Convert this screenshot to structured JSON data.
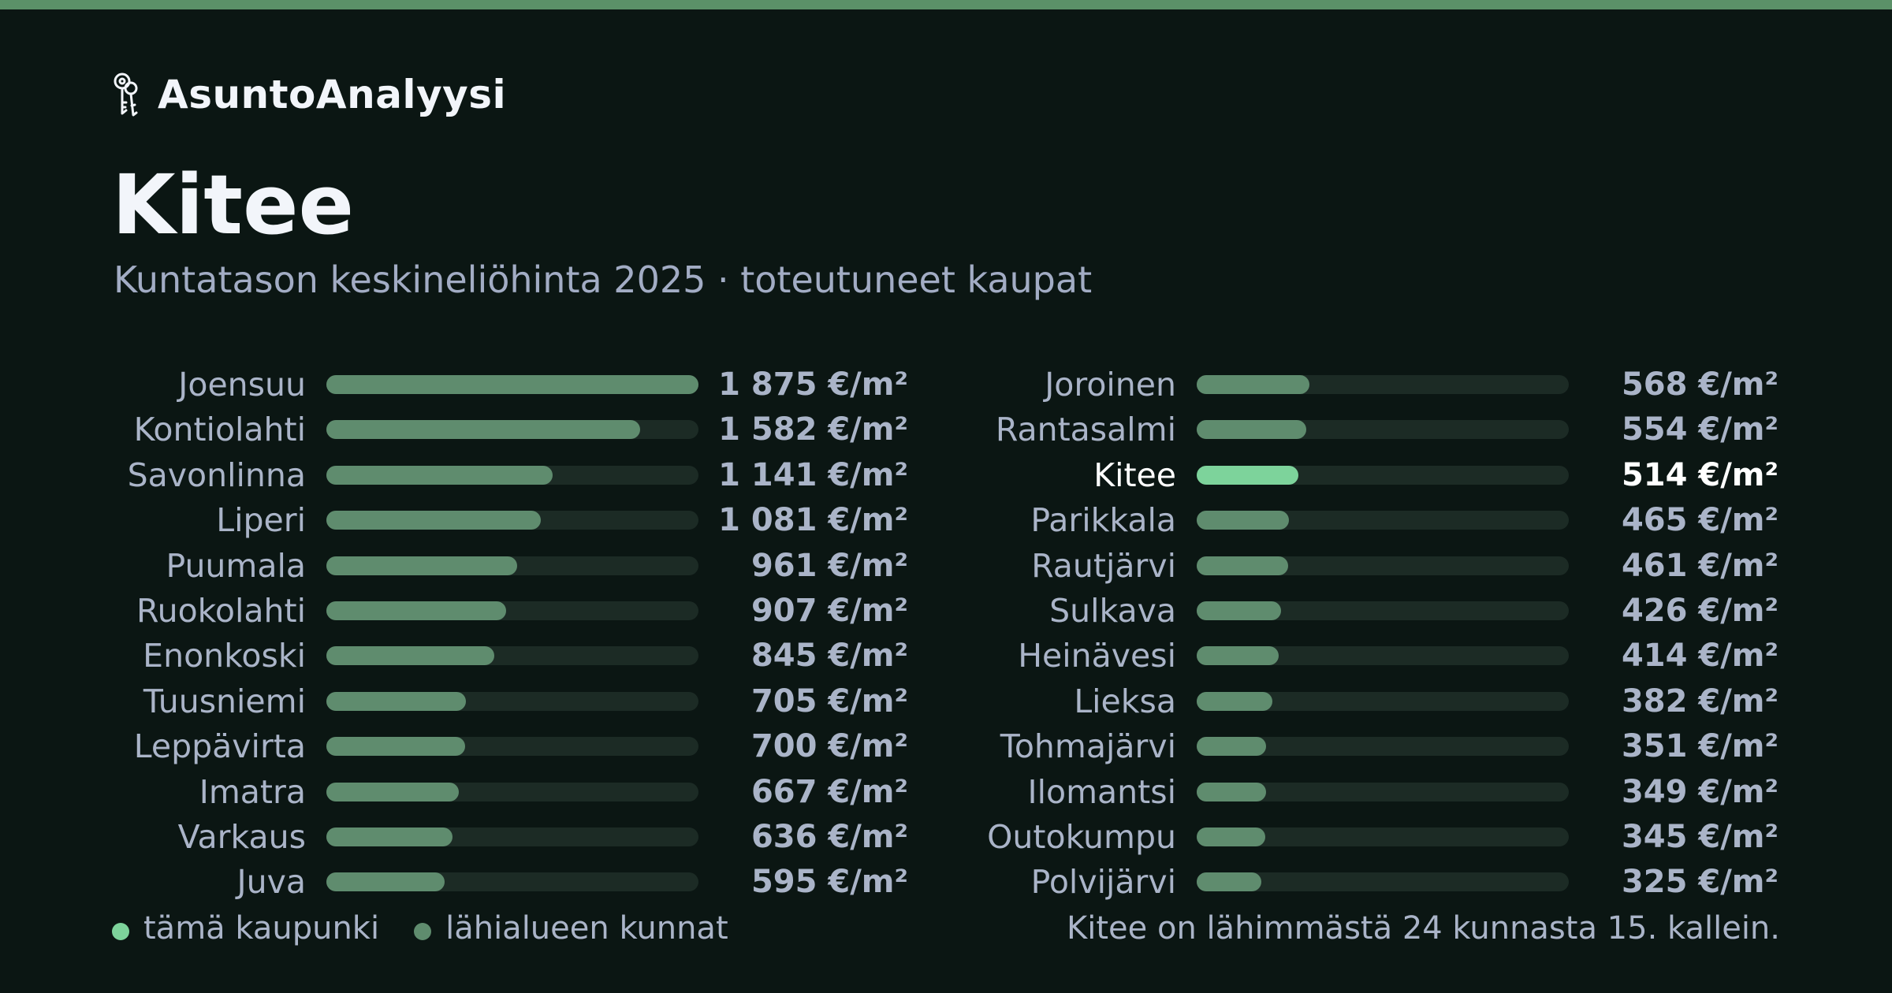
{
  "brand": {
    "name": "AsuntoAnalyysi",
    "icon": "keys-icon"
  },
  "page": {
    "title": "Kitee",
    "subtitle": "Kuntatason keskineliöhinta 2025 · toteutuneet kaupat"
  },
  "colors": {
    "accent_stripe": "#5b9168",
    "bar_default": "#5f8c6e",
    "bar_highlight": "#7dd39b",
    "bar_track": "#1c2b25",
    "background": "#0b1613"
  },
  "chart_data": {
    "type": "bar",
    "orientation": "horizontal",
    "unit": "€/m²",
    "highlight": "Kitee",
    "xlim": [
      0,
      1875
    ],
    "rows": [
      {
        "name": "Joensuu",
        "value": 1875,
        "label": "1 875 €/m²"
      },
      {
        "name": "Kontiolahti",
        "value": 1582,
        "label": "1 582 €/m²"
      },
      {
        "name": "Savonlinna",
        "value": 1141,
        "label": "1 141 €/m²"
      },
      {
        "name": "Liperi",
        "value": 1081,
        "label": "1 081 €/m²"
      },
      {
        "name": "Puumala",
        "value": 961,
        "label": "961 €/m²"
      },
      {
        "name": "Ruokolahti",
        "value": 907,
        "label": "907 €/m²"
      },
      {
        "name": "Enonkoski",
        "value": 845,
        "label": "845 €/m²"
      },
      {
        "name": "Tuusniemi",
        "value": 705,
        "label": "705 €/m²"
      },
      {
        "name": "Leppävirta",
        "value": 700,
        "label": "700 €/m²"
      },
      {
        "name": "Imatra",
        "value": 667,
        "label": "667 €/m²"
      },
      {
        "name": "Varkaus",
        "value": 636,
        "label": "636 €/m²"
      },
      {
        "name": "Juva",
        "value": 595,
        "label": "595 €/m²"
      },
      {
        "name": "Joroinen",
        "value": 568,
        "label": "568 €/m²"
      },
      {
        "name": "Rantasalmi",
        "value": 554,
        "label": "554 €/m²"
      },
      {
        "name": "Kitee",
        "value": 514,
        "label": "514 €/m²"
      },
      {
        "name": "Parikkala",
        "value": 465,
        "label": "465 €/m²"
      },
      {
        "name": "Rautjärvi",
        "value": 461,
        "label": "461 €/m²"
      },
      {
        "name": "Sulkava",
        "value": 426,
        "label": "426 €/m²"
      },
      {
        "name": "Heinävesi",
        "value": 414,
        "label": "414 €/m²"
      },
      {
        "name": "Lieksa",
        "value": 382,
        "label": "382 €/m²"
      },
      {
        "name": "Tohmajärvi",
        "value": 351,
        "label": "351 €/m²"
      },
      {
        "name": "Ilomantsi",
        "value": 349,
        "label": "349 €/m²"
      },
      {
        "name": "Outokumpu",
        "value": 345,
        "label": "345 €/m²"
      },
      {
        "name": "Polvijärvi",
        "value": 325,
        "label": "325 €/m²"
      }
    ]
  },
  "legend": {
    "this_city": "tämä kaupunki",
    "nearby": "lähialueen kunnat"
  },
  "rank_note": "Kitee on lähimmästä 24 kunnasta 15. kallein."
}
